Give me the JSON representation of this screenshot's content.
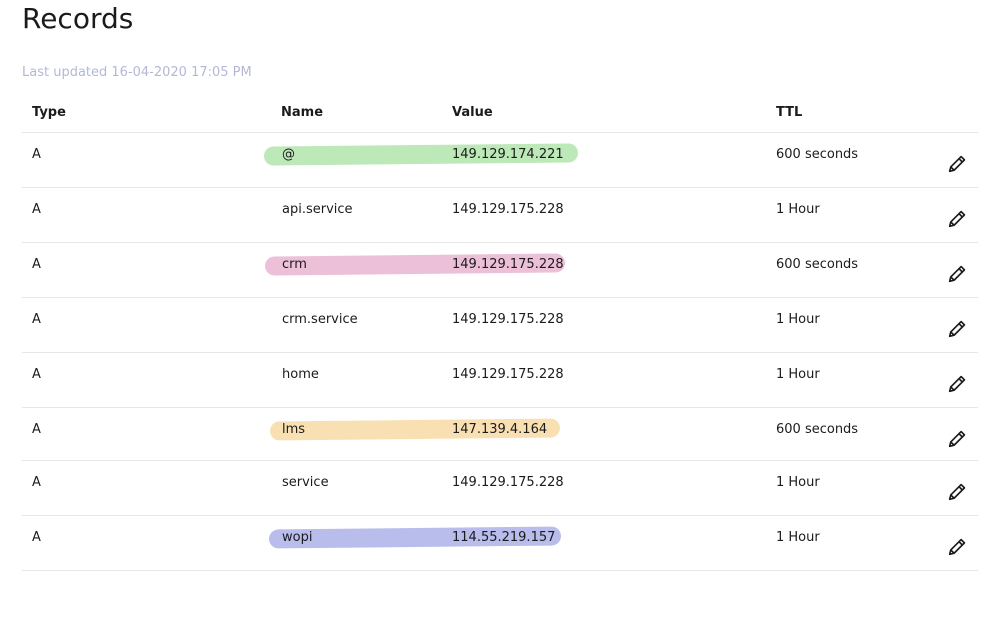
{
  "page": {
    "title": "Records",
    "last_updated": "Last updated 16-04-2020 17:05 PM"
  },
  "table": {
    "headers": {
      "type": "Type",
      "name": "Name",
      "value": "Value",
      "ttl": "TTL"
    },
    "rows": [
      {
        "type": "A",
        "name": "@",
        "value": "149.129.174.221",
        "ttl": "600 seconds",
        "highlight": "#bde8b8"
      },
      {
        "type": "A",
        "name": "api.service",
        "value": "149.129.175.228",
        "ttl": "1 Hour",
        "highlight": null
      },
      {
        "type": "A",
        "name": "crm",
        "value": "149.129.175.228",
        "ttl": "600 seconds",
        "highlight": "#ecc0d8"
      },
      {
        "type": "A",
        "name": "crm.service",
        "value": "149.129.175.228",
        "ttl": "1 Hour",
        "highlight": null
      },
      {
        "type": "A",
        "name": "home",
        "value": "149.129.175.228",
        "ttl": "1 Hour",
        "highlight": null
      },
      {
        "type": "A",
        "name": "lms",
        "value": "147.139.4.164",
        "ttl": "600 seconds",
        "highlight": "#f9e0b3"
      },
      {
        "type": "A",
        "name": "service",
        "value": "149.129.175.228",
        "ttl": "1 Hour",
        "highlight": null
      },
      {
        "type": "A",
        "name": "wopi",
        "value": "114.55.219.157",
        "ttl": "1 Hour",
        "highlight": "#b8bdec"
      }
    ],
    "edit_icon": "pencil-icon"
  }
}
